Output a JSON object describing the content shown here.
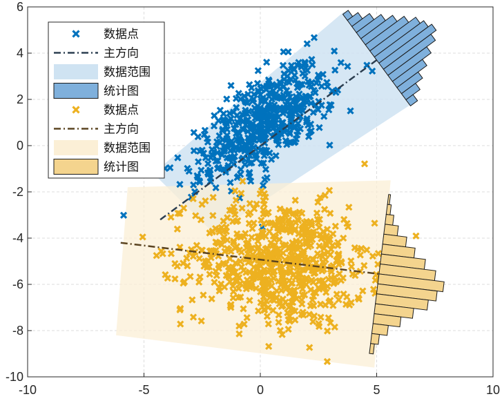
{
  "chart_data": {
    "type": "scatter",
    "xlim": [
      -10,
      10
    ],
    "ylim": [
      -10,
      6
    ],
    "x_ticks": [
      -10,
      -5,
      0,
      5,
      10
    ],
    "y_ticks": [
      6,
      4,
      2,
      0,
      -2,
      -4,
      -6,
      -8,
      -10
    ],
    "grid": true,
    "legend_position": "top-left",
    "colors": {
      "blue_points": "#0072BD",
      "blue_line": "#2C3E50",
      "blue_band": "#CFE3F2",
      "blue_hist": "#7FB0DC",
      "orange_points": "#EDB120",
      "orange_line": "#5A4320",
      "orange_band": "#FBEFD6",
      "orange_hist": "#F4D48E"
    },
    "groups": [
      {
        "center": [
          0.2,
          1.0
        ],
        "principal_axis": {
          "from": [
            -4.3,
            -3.2
          ],
          "to": [
            5.0,
            3.7
          ]
        },
        "band": [
          [
            -4.6,
            -1.2
          ],
          [
            -2.0,
            -3.8
          ],
          [
            6.5,
            1.8
          ],
          [
            3.6,
            5.8
          ]
        ],
        "spread": {
          "major_sd": 1.8,
          "minor_sd": 0.85,
          "angle_deg": 36.6
        },
        "n_points": 500,
        "hist_counts": [
          3,
          6,
          10,
          14,
          18,
          22,
          26,
          28,
          30,
          27,
          22,
          17,
          12,
          8,
          4
        ]
      },
      {
        "center": [
          0.8,
          -5.0
        ],
        "principal_axis": {
          "from": [
            -6.0,
            -4.2
          ],
          "to": [
            5.1,
            -5.55
          ]
        },
        "band": [
          [
            -6.2,
            -8.2
          ],
          [
            4.9,
            -9.6
          ],
          [
            5.6,
            -1.5
          ],
          [
            -5.7,
            -1.8
          ]
        ],
        "spread": {
          "major_sd": 1.9,
          "minor_sd": 1.35,
          "angle_deg": -7
        },
        "n_points": 700,
        "hist_counts": [
          1,
          2,
          4,
          7,
          12,
          17,
          23,
          29,
          34,
          31,
          27,
          20,
          14,
          8,
          4,
          2
        ]
      }
    ],
    "legend": [
      {
        "label": "数据点",
        "kind": "marker",
        "color": "#0072BD"
      },
      {
        "label": "主方向",
        "kind": "dashdot",
        "color": "#2C3E50"
      },
      {
        "label": "数据范围",
        "kind": "patch",
        "color": "#CFE3F2"
      },
      {
        "label": "统计图",
        "kind": "patch-edge",
        "color": "#7FB0DC"
      },
      {
        "label": "数据点",
        "kind": "marker",
        "color": "#EDB120"
      },
      {
        "label": "主方向",
        "kind": "dashdot",
        "color": "#5A4320"
      },
      {
        "label": "数据范围",
        "kind": "patch",
        "color": "#FBEFD6"
      },
      {
        "label": "统计图",
        "kind": "patch-edge",
        "color": "#F4D48E"
      }
    ]
  }
}
